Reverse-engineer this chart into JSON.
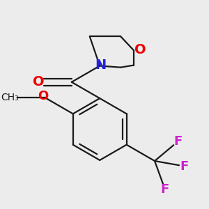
{
  "background_color": "#ececec",
  "bond_color": "#1a1a1a",
  "oxygen_color": "#ee0000",
  "nitrogen_color": "#2222dd",
  "fluorine_color": "#cc22cc",
  "line_width": 1.6,
  "figsize": [
    3.0,
    3.0
  ],
  "dpi": 100,
  "xlim": [
    -1.3,
    1.3
  ],
  "ylim": [
    -1.3,
    1.3
  ]
}
